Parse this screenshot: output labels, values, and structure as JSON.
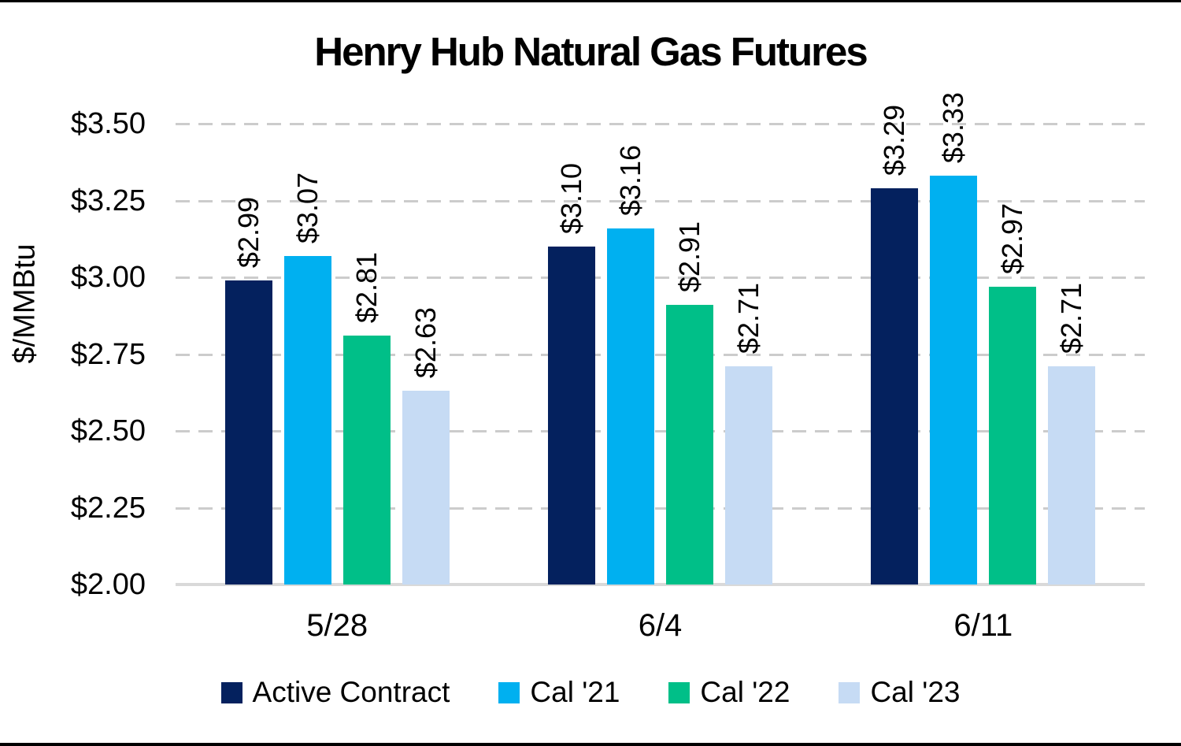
{
  "title": "Henry Hub Natural Gas Futures",
  "y_axis": {
    "label": "$/MMBtu",
    "tick_labels": [
      "$2.00",
      "$2.25",
      "$2.50",
      "$2.75",
      "$3.00",
      "$3.25",
      "$3.50"
    ]
  },
  "chart_data": {
    "type": "bar",
    "title": "Henry Hub Natural Gas Futures",
    "xlabel": "",
    "ylabel": "$/MMBtu",
    "ylim": [
      2.0,
      3.5
    ],
    "ytick_step": 0.25,
    "ytick_values": [
      2.0,
      2.25,
      2.5,
      2.75,
      3.0,
      3.25,
      3.5
    ],
    "ytick_labels": [
      "$2.00",
      "$2.25",
      "$2.50",
      "$2.75",
      "$3.00",
      "$3.25",
      "$3.50"
    ],
    "grid": "horizontal-dashed",
    "legend_position": "bottom",
    "categories": [
      "5/28",
      "6/4",
      "6/11"
    ],
    "series": [
      {
        "name": "Active Contract",
        "color": "#04215E",
        "values": [
          2.99,
          3.1,
          3.29
        ],
        "data_labels": [
          "$2.99",
          "$3.10",
          "$3.29"
        ]
      },
      {
        "name": "Cal '21",
        "color": "#00B0F0",
        "values": [
          3.07,
          3.16,
          3.33
        ],
        "data_labels": [
          "$3.07",
          "$3.16",
          "$3.33"
        ]
      },
      {
        "name": "Cal '22",
        "color": "#00BF88",
        "values": [
          2.81,
          2.91,
          2.97
        ],
        "data_labels": [
          "$2.81",
          "$2.91",
          "$2.97"
        ]
      },
      {
        "name": "Cal '23",
        "color": "#C6DBF4",
        "values": [
          2.63,
          2.71,
          2.71
        ],
        "data_labels": [
          "$2.63",
          "$2.71",
          "$2.71"
        ]
      }
    ]
  },
  "colors": {
    "grid_dash": "#CCCCCC",
    "axis_baseline": "#D9D9D9",
    "text": "#000000",
    "background": "#FFFFFF",
    "frame_border": "#000000"
  }
}
